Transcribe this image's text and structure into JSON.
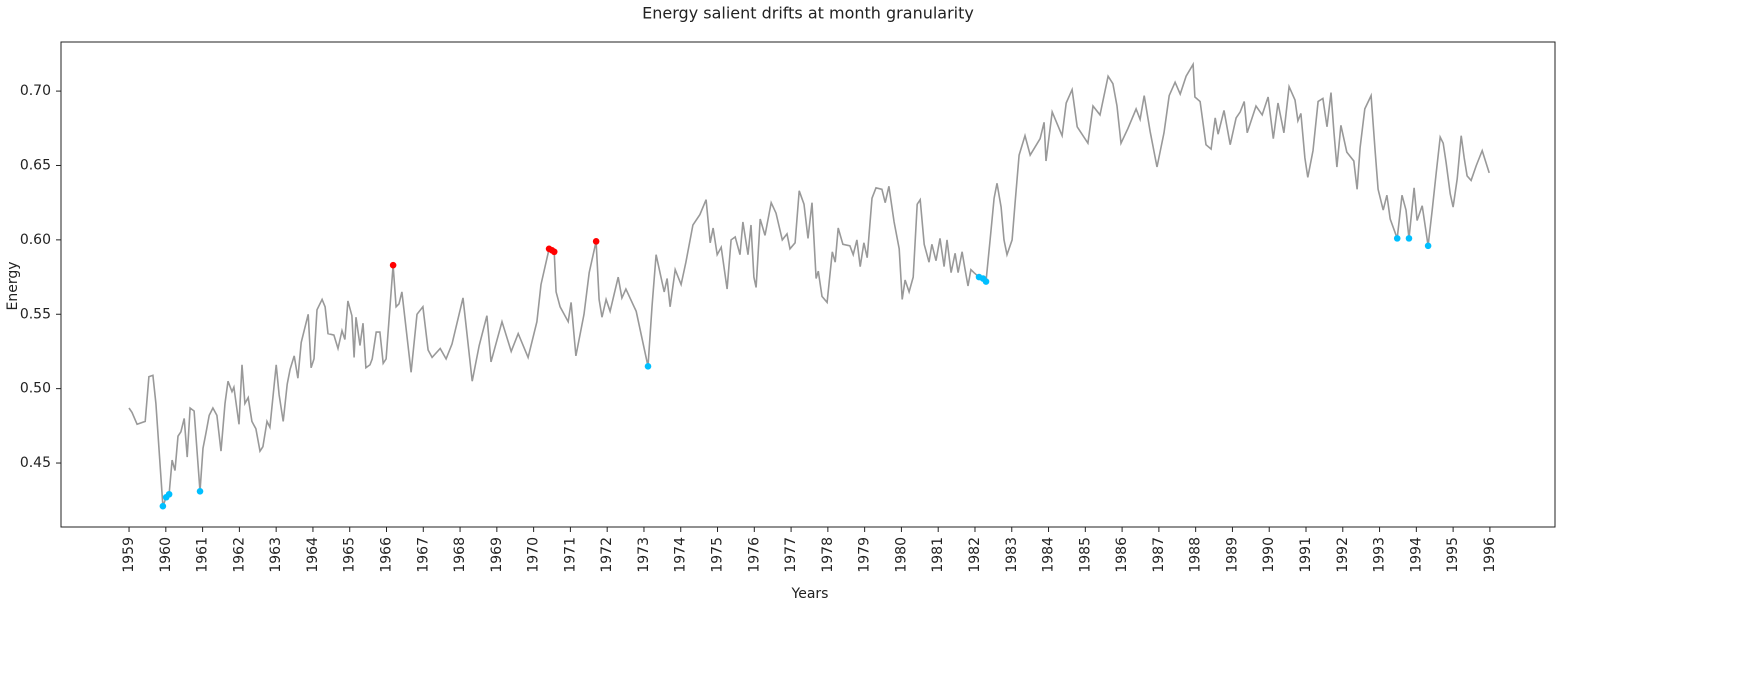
{
  "chart_data": {
    "type": "line",
    "title": "Energy salient drifts at month granularity",
    "x_label": "Years",
    "y_label": "Energy",
    "xlim": [
      1957.15,
      1997.77
    ],
    "ylim": [
      0.407,
      0.733
    ],
    "xticks": [
      1959,
      1960,
      1961,
      1962,
      1963,
      1964,
      1965,
      1966,
      1967,
      1968,
      1969,
      1970,
      1971,
      1972,
      1973,
      1974,
      1975,
      1976,
      1977,
      1978,
      1979,
      1980,
      1981,
      1982,
      1983,
      1984,
      1985,
      1986,
      1987,
      1988,
      1989,
      1990,
      1991,
      1992,
      1993,
      1994,
      1995,
      1996
    ],
    "yticks": [
      0.45,
      {
        "value": 0.5,
        "label": "0.50"
      },
      0.55,
      {
        "value": 0.6,
        "label": "0.60"
      },
      0.65,
      {
        "value": 0.7,
        "label": "0.70"
      }
    ],
    "grid": false,
    "series": [
      {
        "type": "line",
        "color": "#999999",
        "x": [
          1959.0,
          1959.08,
          1959.22,
          1959.44,
          1959.54,
          1959.65,
          1959.73,
          1959.92,
          1960.01,
          1960.09,
          1960.17,
          1960.25,
          1960.33,
          1960.41,
          1960.5,
          1960.58,
          1960.66,
          1960.77,
          1960.93,
          1961.01,
          1961.09,
          1961.18,
          1961.28,
          1961.39,
          1961.5,
          1961.61,
          1961.69,
          1961.8,
          1961.85,
          1961.99,
          1962.07,
          1962.15,
          1962.24,
          1962.34,
          1962.45,
          1962.56,
          1962.64,
          1962.75,
          1962.83,
          1963.0,
          1963.08,
          1963.19,
          1963.3,
          1963.38,
          1963.49,
          1963.59,
          1963.68,
          1963.87,
          1963.95,
          1964.03,
          1964.11,
          1964.25,
          1964.33,
          1964.41,
          1964.57,
          1964.68,
          1964.79,
          1964.87,
          1964.95,
          1965.06,
          1965.12,
          1965.17,
          1965.28,
          1965.36,
          1965.44,
          1965.55,
          1965.61,
          1965.72,
          1965.82,
          1965.91,
          1965.99,
          1966.18,
          1966.26,
          1966.34,
          1966.42,
          1966.67,
          1966.83,
          1966.99,
          1967.13,
          1967.24,
          1967.46,
          1967.62,
          1967.78,
          1968.08,
          1968.33,
          1968.52,
          1968.73,
          1968.84,
          1969.14,
          1969.39,
          1969.58,
          1969.85,
          1970.09,
          1970.2,
          1970.42,
          1970.5,
          1970.56,
          1970.61,
          1970.72,
          1970.94,
          1971.02,
          1971.15,
          1971.37,
          1971.51,
          1971.7,
          1971.78,
          1971.86,
          1971.97,
          1972.08,
          1972.3,
          1972.4,
          1972.51,
          1972.79,
          1973.11,
          1973.22,
          1973.33,
          1973.55,
          1973.63,
          1973.71,
          1973.85,
          1974.01,
          1974.14,
          1974.33,
          1974.52,
          1974.69,
          1974.8,
          1974.88,
          1974.99,
          1975.1,
          1975.26,
          1975.37,
          1975.48,
          1975.61,
          1975.69,
          1975.83,
          1975.91,
          1975.99,
          1976.05,
          1976.16,
          1976.29,
          1976.46,
          1976.59,
          1976.76,
          1976.89,
          1976.97,
          1977.11,
          1977.22,
          1977.35,
          1977.46,
          1977.57,
          1977.68,
          1977.74,
          1977.84,
          1977.98,
          1978.12,
          1978.2,
          1978.28,
          1978.41,
          1978.6,
          1978.69,
          1978.79,
          1978.88,
          1978.98,
          1979.07,
          1979.2,
          1979.31,
          1979.47,
          1979.56,
          1979.66,
          1979.8,
          1979.94,
          1980.02,
          1980.1,
          1980.21,
          1980.32,
          1980.43,
          1980.51,
          1980.62,
          1980.75,
          1980.83,
          1980.94,
          1981.05,
          1981.16,
          1981.24,
          1981.35,
          1981.46,
          1981.54,
          1981.65,
          1981.73,
          1981.81,
          1981.89,
          1981.97,
          1982.11,
          1982.22,
          1982.3,
          1982.41,
          1982.52,
          1982.6,
          1982.71,
          1982.79,
          1982.87,
          1983.01,
          1983.09,
          1983.2,
          1983.36,
          1983.5,
          1983.77,
          1983.88,
          1983.93,
          1984.1,
          1984.37,
          1984.48,
          1984.64,
          1984.78,
          1985.07,
          1985.21,
          1985.4,
          1985.62,
          1985.75,
          1985.86,
          1985.97,
          1986.16,
          1986.38,
          1986.49,
          1986.6,
          1986.76,
          1986.95,
          1987.14,
          1987.28,
          1987.44,
          1987.58,
          1987.74,
          1987.93,
          1987.98,
          1988.12,
          1988.28,
          1988.42,
          1988.53,
          1988.61,
          1988.77,
          1988.94,
          1989.1,
          1989.21,
          1989.32,
          1989.4,
          1989.64,
          1989.81,
          1989.97,
          1990.11,
          1990.24,
          1990.4,
          1990.54,
          1990.7,
          1990.78,
          1990.86,
          1990.97,
          1991.05,
          1991.19,
          1991.33,
          1991.46,
          1991.57,
          1991.68,
          1991.76,
          1991.84,
          1991.95,
          1992.11,
          1992.3,
          1992.39,
          1992.47,
          1992.6,
          1992.77,
          1992.88,
          1992.96,
          1993.1,
          1993.2,
          1993.29,
          1993.48,
          1993.61,
          1993.72,
          1993.8,
          1993.94,
          1994.02,
          1994.16,
          1994.32,
          1994.43,
          1994.54,
          1994.65,
          1994.73,
          1994.81,
          1994.92,
          1995.0,
          1995.11,
          1995.22,
          1995.3,
          1995.38,
          1995.49,
          1995.63,
          1995.79,
          1995.98
        ],
        "values": [
          0.487,
          0.484,
          0.476,
          0.478,
          0.508,
          0.509,
          0.49,
          0.421,
          0.427,
          0.429,
          0.452,
          0.445,
          0.468,
          0.471,
          0.48,
          0.454,
          0.487,
          0.485,
          0.431,
          0.46,
          0.47,
          0.482,
          0.487,
          0.482,
          0.458,
          0.49,
          0.505,
          0.498,
          0.501,
          0.476,
          0.516,
          0.49,
          0.494,
          0.478,
          0.473,
          0.458,
          0.461,
          0.478,
          0.474,
          0.516,
          0.496,
          0.478,
          0.503,
          0.513,
          0.522,
          0.507,
          0.531,
          0.55,
          0.514,
          0.52,
          0.553,
          0.56,
          0.555,
          0.537,
          0.536,
          0.527,
          0.539,
          0.533,
          0.559,
          0.549,
          0.521,
          0.548,
          0.529,
          0.544,
          0.514,
          0.516,
          0.52,
          0.538,
          0.538,
          0.517,
          0.52,
          0.583,
          0.555,
          0.557,
          0.565,
          0.511,
          0.55,
          0.555,
          0.526,
          0.521,
          0.527,
          0.52,
          0.53,
          0.561,
          0.505,
          0.529,
          0.549,
          0.518,
          0.545,
          0.525,
          0.537,
          0.521,
          0.545,
          0.57,
          0.594,
          0.593,
          0.592,
          0.565,
          0.555,
          0.545,
          0.558,
          0.522,
          0.55,
          0.578,
          0.599,
          0.56,
          0.548,
          0.56,
          0.552,
          0.575,
          0.561,
          0.567,
          0.552,
          0.515,
          0.556,
          0.59,
          0.565,
          0.574,
          0.555,
          0.58,
          0.57,
          0.585,
          0.61,
          0.617,
          0.627,
          0.598,
          0.608,
          0.59,
          0.595,
          0.567,
          0.6,
          0.602,
          0.59,
          0.612,
          0.59,
          0.61,
          0.575,
          0.568,
          0.614,
          0.603,
          0.625,
          0.618,
          0.6,
          0.604,
          0.594,
          0.598,
          0.633,
          0.624,
          0.601,
          0.625,
          0.574,
          0.579,
          0.562,
          0.558,
          0.592,
          0.585,
          0.608,
          0.597,
          0.596,
          0.59,
          0.6,
          0.582,
          0.598,
          0.588,
          0.628,
          0.635,
          0.634,
          0.625,
          0.636,
          0.612,
          0.594,
          0.56,
          0.573,
          0.565,
          0.575,
          0.624,
          0.627,
          0.597,
          0.585,
          0.597,
          0.586,
          0.601,
          0.582,
          0.6,
          0.578,
          0.591,
          0.578,
          0.592,
          0.58,
          0.569,
          0.58,
          0.578,
          0.575,
          0.574,
          0.572,
          0.6,
          0.628,
          0.638,
          0.622,
          0.6,
          0.59,
          0.6,
          0.625,
          0.657,
          0.67,
          0.657,
          0.668,
          0.679,
          0.653,
          0.686,
          0.67,
          0.692,
          0.701,
          0.676,
          0.665,
          0.69,
          0.684,
          0.71,
          0.705,
          0.69,
          0.665,
          0.675,
          0.688,
          0.681,
          0.697,
          0.673,
          0.649,
          0.672,
          0.697,
          0.706,
          0.698,
          0.71,
          0.718,
          0.696,
          0.693,
          0.664,
          0.661,
          0.682,
          0.671,
          0.687,
          0.664,
          0.682,
          0.686,
          0.693,
          0.672,
          0.69,
          0.684,
          0.696,
          0.668,
          0.692,
          0.672,
          0.703,
          0.694,
          0.68,
          0.685,
          0.655,
          0.642,
          0.66,
          0.693,
          0.695,
          0.676,
          0.699,
          0.672,
          0.649,
          0.677,
          0.659,
          0.653,
          0.634,
          0.662,
          0.688,
          0.697,
          0.66,
          0.634,
          0.62,
          0.63,
          0.614,
          0.601,
          0.63,
          0.62,
          0.601,
          0.635,
          0.613,
          0.623,
          0.596,
          0.62,
          0.645,
          0.669,
          0.665,
          0.652,
          0.631,
          0.622,
          0.641,
          0.67,
          0.655,
          0.643,
          0.64,
          0.65,
          0.66,
          0.645
        ]
      },
      {
        "type": "scatter",
        "color": "#ff0000",
        "x": [
          1966.18,
          1970.42,
          1970.5,
          1970.56,
          1971.7
        ],
        "values": [
          0.583,
          0.594,
          0.593,
          0.592,
          0.599
        ]
      },
      {
        "type": "scatter",
        "color": "#00bfff",
        "x": [
          1959.92,
          1960.01,
          1960.09,
          1960.93,
          1973.11,
          1982.11,
          1982.22,
          1982.3,
          1993.48,
          1993.8,
          1994.32
        ],
        "values": [
          0.421,
          0.427,
          0.429,
          0.431,
          0.515,
          0.575,
          0.574,
          0.572,
          0.601,
          0.601,
          0.596
        ]
      }
    ]
  }
}
